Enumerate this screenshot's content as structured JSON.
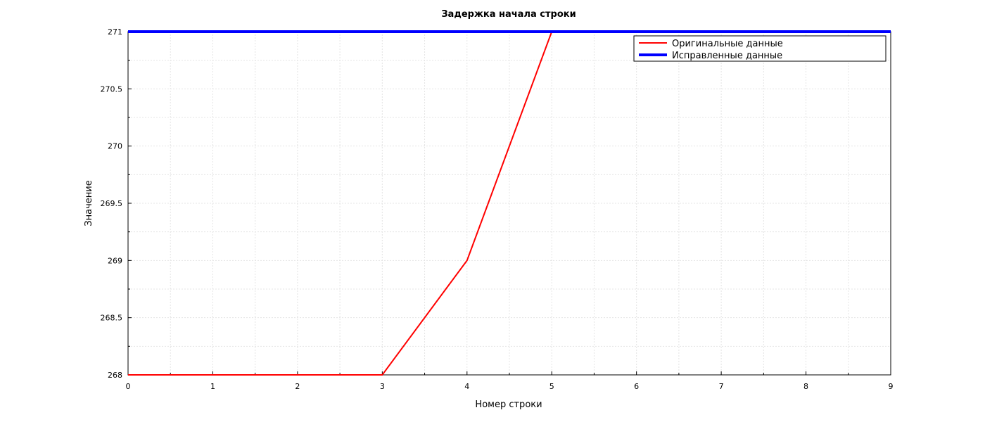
{
  "chart_data": {
    "type": "line",
    "title": "Задержка начала строки",
    "xlabel": "Номер строки",
    "ylabel": "Значение",
    "xlim": [
      0,
      9
    ],
    "ylim": [
      268,
      271
    ],
    "x_ticks": [
      "0",
      "1",
      "2",
      "3",
      "4",
      "5",
      "6",
      "7",
      "8",
      "9"
    ],
    "y_ticks": [
      "268",
      "268.5",
      "269",
      "269.5",
      "270",
      "270.5",
      "271"
    ],
    "grid": true,
    "legend_position": "top-right",
    "series": [
      {
        "name": "Оригинальные данные",
        "color": "#ff0000",
        "x": [
          0,
          1,
          2,
          3,
          4,
          5,
          6,
          7,
          8,
          9
        ],
        "y": [
          268,
          268,
          268,
          268,
          269,
          271,
          271,
          271,
          271,
          271
        ]
      },
      {
        "name": "Исправленные данные",
        "color": "#0000ff",
        "x": [
          0,
          1,
          2,
          3,
          4,
          5,
          6,
          7,
          8,
          9
        ],
        "y": [
          271,
          271,
          271,
          271,
          271,
          271,
          271,
          271,
          271,
          271
        ]
      }
    ]
  }
}
